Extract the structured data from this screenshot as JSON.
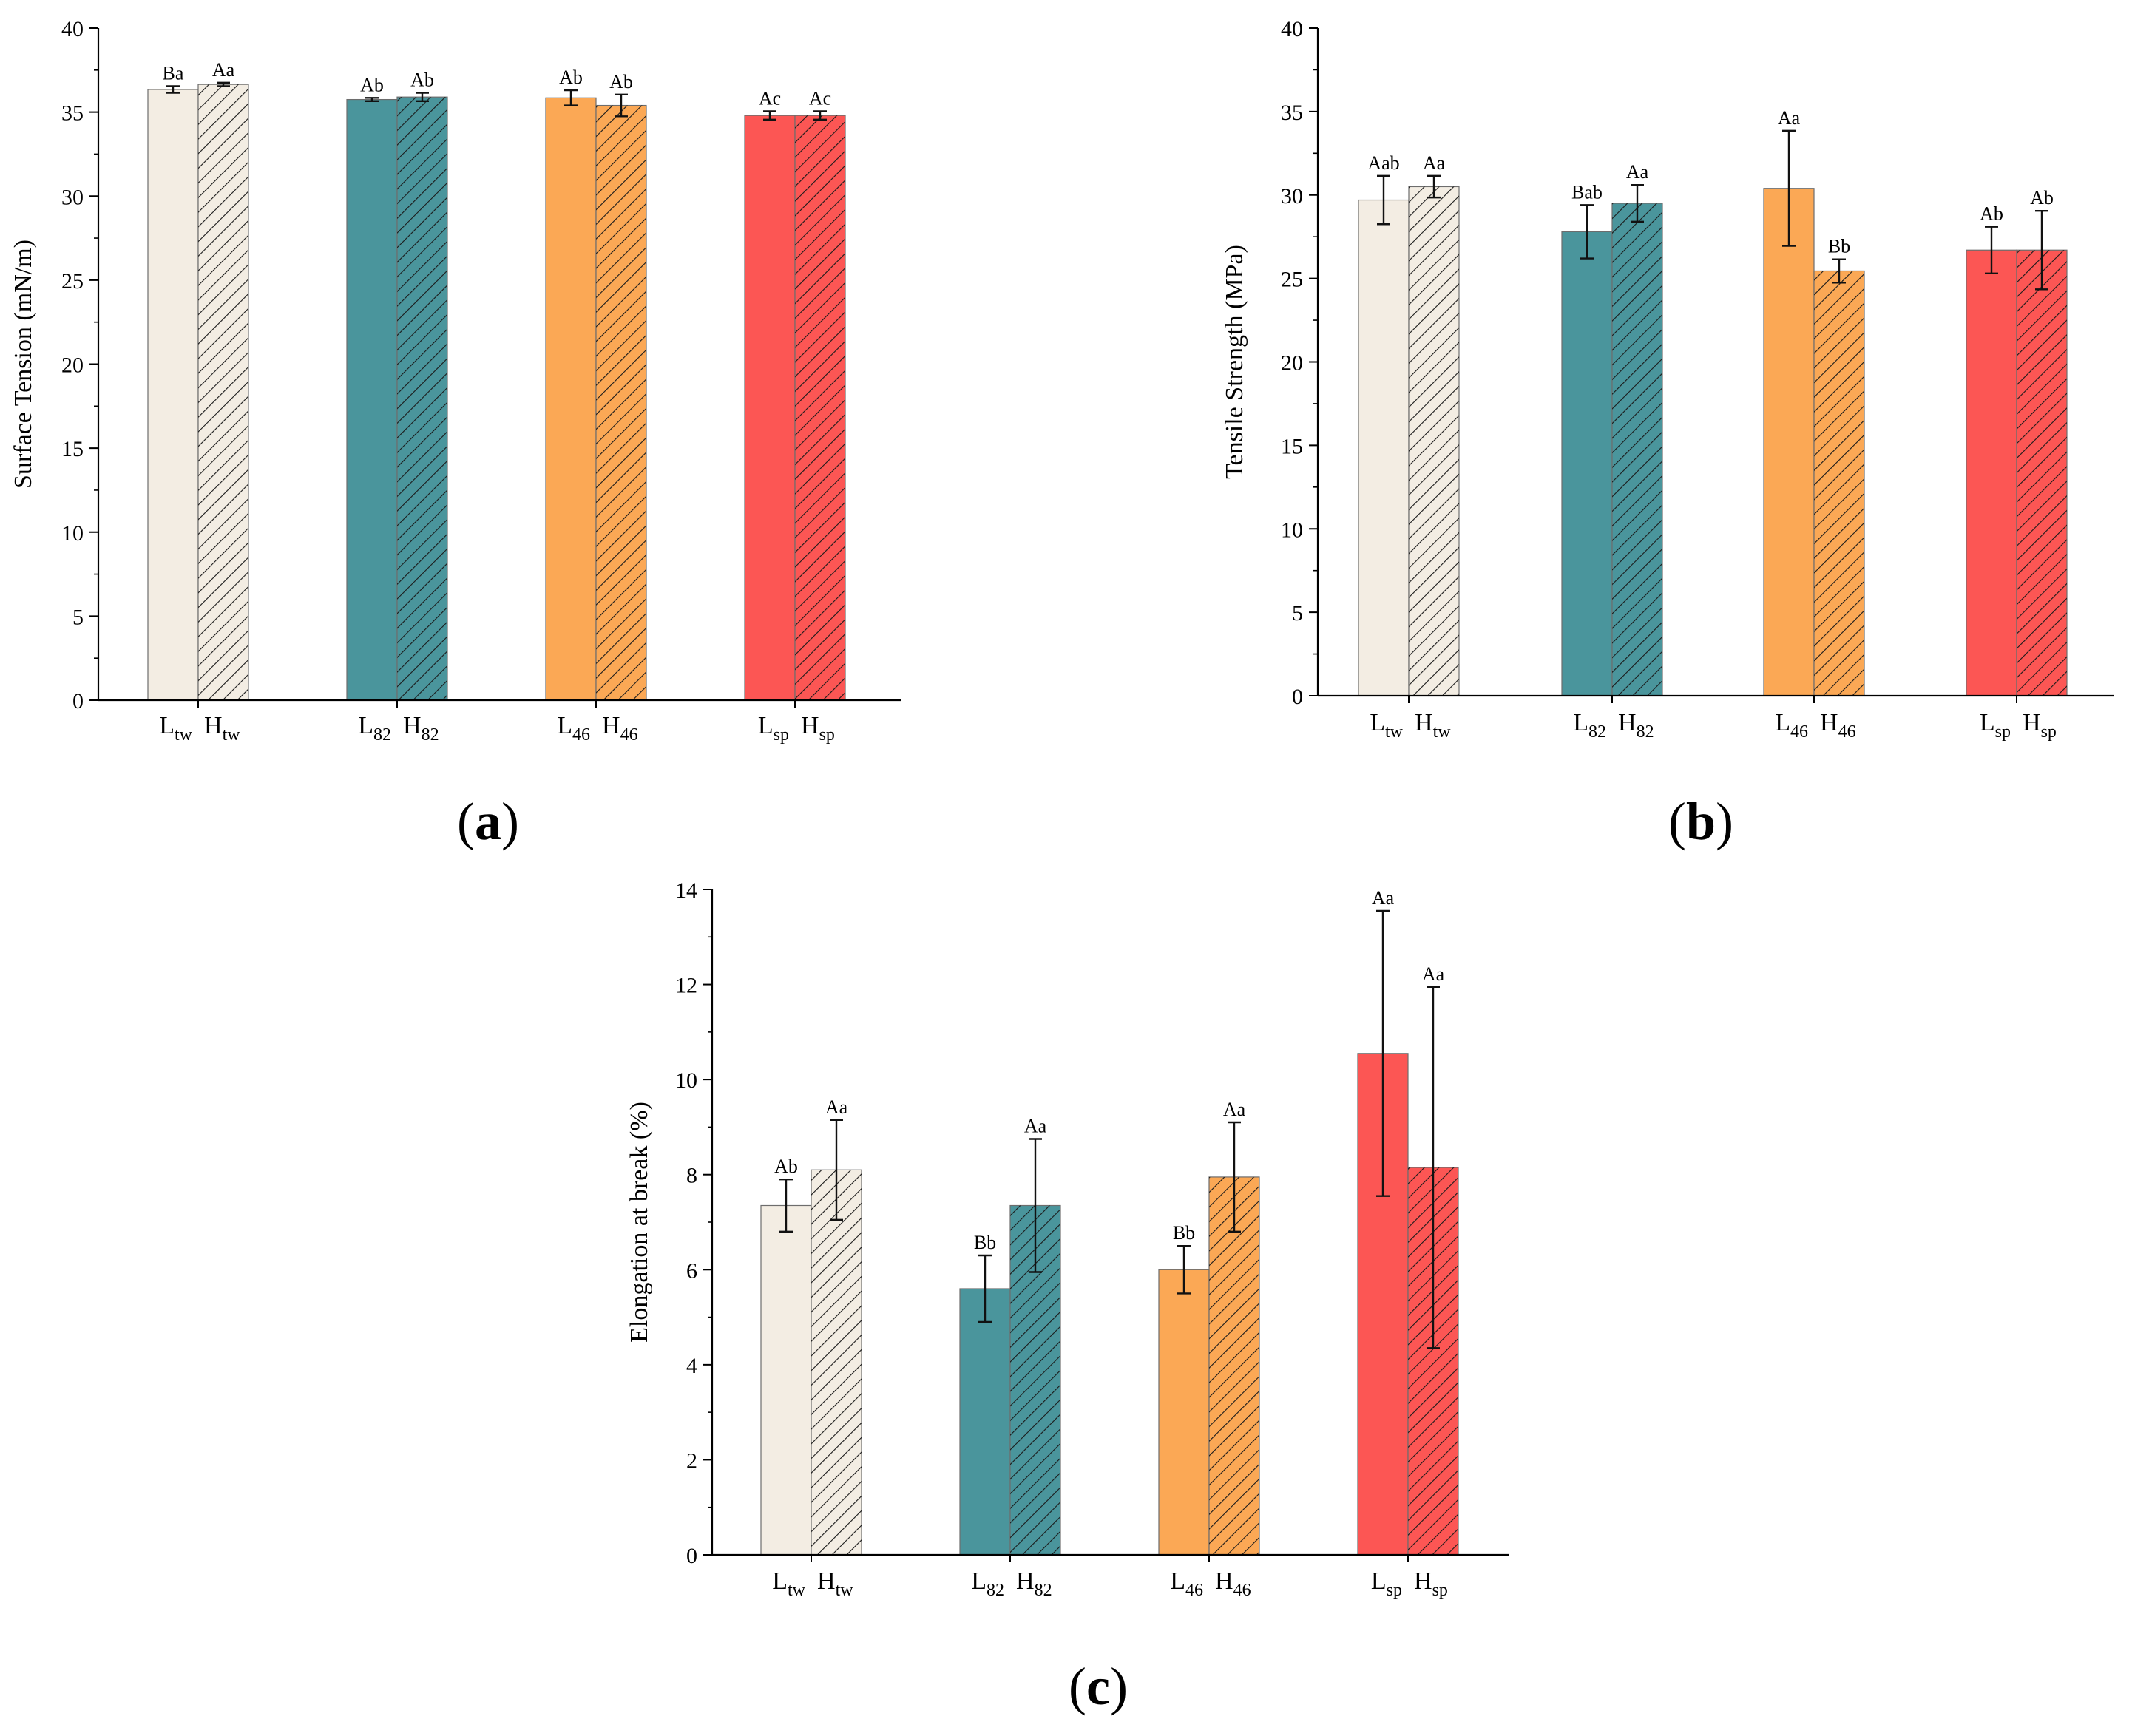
{
  "figure": {
    "panel_labels": [
      {
        "open": "(",
        "letter": "a",
        "close": ")"
      },
      {
        "open": "(",
        "letter": "b",
        "close": ")"
      },
      {
        "open": "(",
        "letter": "c",
        "close": ")"
      }
    ]
  },
  "colors": {
    "tw": "#f3ede3",
    "c82": "#4a959c",
    "c46": "#fba855",
    "sp": "#fc5654",
    "axis": "#000000"
  },
  "chart_data": [
    {
      "id": "a",
      "type": "bar",
      "title": "",
      "xlabel": "",
      "ylabel": "Surface Tension (mN/m)",
      "ylim": [
        0,
        40
      ],
      "yticks": [
        0,
        5,
        10,
        15,
        20,
        25,
        30,
        35,
        40
      ],
      "grid": false,
      "groups": [
        {
          "key": "tw",
          "color_key": "tw",
          "labels": [
            {
              "main": "L",
              "sub": "tw"
            },
            {
              "main": "H",
              "sub": "tw"
            }
          ],
          "bars": [
            {
              "series": "L",
              "hatched": false,
              "value": 36.35,
              "error": 0.2,
              "letters": "Ba"
            },
            {
              "series": "H",
              "hatched": true,
              "value": 36.65,
              "error": 0.1,
              "letters": "Aa"
            }
          ]
        },
        {
          "key": "82",
          "color_key": "c82",
          "labels": [
            {
              "main": "L",
              "sub": "82"
            },
            {
              "main": "H",
              "sub": "82"
            }
          ],
          "bars": [
            {
              "series": "L",
              "hatched": false,
              "value": 35.75,
              "error": 0.1,
              "letters": "Ab"
            },
            {
              "series": "H",
              "hatched": true,
              "value": 35.9,
              "error": 0.25,
              "letters": "Ab"
            }
          ]
        },
        {
          "key": "46",
          "color_key": "c46",
          "labels": [
            {
              "main": "L",
              "sub": "46"
            },
            {
              "main": "H",
              "sub": "46"
            }
          ],
          "bars": [
            {
              "series": "L",
              "hatched": false,
              "value": 35.85,
              "error": 0.45,
              "letters": "Ab"
            },
            {
              "series": "H",
              "hatched": true,
              "value": 35.4,
              "error": 0.65,
              "letters": "Ab"
            }
          ]
        },
        {
          "key": "sp",
          "color_key": "sp",
          "labels": [
            {
              "main": "L",
              "sub": "sp"
            },
            {
              "main": "H",
              "sub": "sp"
            }
          ],
          "bars": [
            {
              "series": "L",
              "hatched": false,
              "value": 34.8,
              "error": 0.25,
              "letters": "Ac"
            },
            {
              "series": "H",
              "hatched": true,
              "value": 34.8,
              "error": 0.25,
              "letters": "Ac"
            }
          ]
        }
      ]
    },
    {
      "id": "b",
      "type": "bar",
      "title": "",
      "xlabel": "",
      "ylabel": "Tensile Strength (MPa)",
      "ylim": [
        0,
        40
      ],
      "yticks": [
        0,
        5,
        10,
        15,
        20,
        25,
        30,
        35,
        40
      ],
      "grid": false,
      "groups": [
        {
          "key": "tw",
          "color_key": "tw",
          "labels": [
            {
              "main": "L",
              "sub": "tw"
            },
            {
              "main": "H",
              "sub": "tw"
            }
          ],
          "bars": [
            {
              "series": "L",
              "hatched": false,
              "value": 29.7,
              "error": 1.45,
              "letters": "Aab"
            },
            {
              "series": "H",
              "hatched": true,
              "value": 30.5,
              "error": 0.65,
              "letters": "Aa"
            }
          ]
        },
        {
          "key": "82",
          "color_key": "c82",
          "labels": [
            {
              "main": "L",
              "sub": "82"
            },
            {
              "main": "H",
              "sub": "82"
            }
          ],
          "bars": [
            {
              "series": "L",
              "hatched": false,
              "value": 27.8,
              "error": 1.6,
              "letters": "Bab"
            },
            {
              "series": "H",
              "hatched": true,
              "value": 29.5,
              "error": 1.1,
              "letters": "Aa"
            }
          ]
        },
        {
          "key": "46",
          "color_key": "c46",
          "labels": [
            {
              "main": "L",
              "sub": "46"
            },
            {
              "main": "H",
              "sub": "46"
            }
          ],
          "bars": [
            {
              "series": "L",
              "hatched": false,
              "value": 30.4,
              "error": 3.45,
              "letters": "Aa"
            },
            {
              "series": "H",
              "hatched": true,
              "value": 25.45,
              "error": 0.7,
              "letters": "Bb"
            }
          ]
        },
        {
          "key": "sp",
          "color_key": "sp",
          "labels": [
            {
              "main": "L",
              "sub": "sp"
            },
            {
              "main": "H",
              "sub": "sp"
            }
          ],
          "bars": [
            {
              "series": "L",
              "hatched": false,
              "value": 26.7,
              "error": 1.4,
              "letters": "Ab"
            },
            {
              "series": "H",
              "hatched": true,
              "value": 26.7,
              "error": 2.35,
              "letters": "Ab"
            }
          ]
        }
      ]
    },
    {
      "id": "c",
      "type": "bar",
      "title": "",
      "xlabel": "",
      "ylabel": "Elongation at break (%)",
      "ylim": [
        0,
        14
      ],
      "yticks": [
        0,
        2,
        4,
        6,
        8,
        10,
        12,
        14
      ],
      "grid": false,
      "groups": [
        {
          "key": "tw",
          "color_key": "tw",
          "labels": [
            {
              "main": "L",
              "sub": "tw"
            },
            {
              "main": "H",
              "sub": "tw"
            }
          ],
          "bars": [
            {
              "series": "L",
              "hatched": false,
              "value": 7.35,
              "error": 0.55,
              "letters": "Ab"
            },
            {
              "series": "H",
              "hatched": true,
              "value": 8.1,
              "error": 1.05,
              "letters": "Aa"
            }
          ]
        },
        {
          "key": "82",
          "color_key": "c82",
          "labels": [
            {
              "main": "L",
              "sub": "82"
            },
            {
              "main": "H",
              "sub": "82"
            }
          ],
          "bars": [
            {
              "series": "L",
              "hatched": false,
              "value": 5.6,
              "error": 0.7,
              "letters": "Bb"
            },
            {
              "series": "H",
              "hatched": true,
              "value": 7.35,
              "error": 1.4,
              "letters": "Aa"
            }
          ]
        },
        {
          "key": "46",
          "color_key": "c46",
          "labels": [
            {
              "main": "L",
              "sub": "46"
            },
            {
              "main": "H",
              "sub": "46"
            }
          ],
          "bars": [
            {
              "series": "L",
              "hatched": false,
              "value": 6.0,
              "error": 0.5,
              "letters": "Bb"
            },
            {
              "series": "H",
              "hatched": true,
              "value": 7.95,
              "error": 1.15,
              "letters": "Aa"
            }
          ]
        },
        {
          "key": "sp",
          "color_key": "sp",
          "labels": [
            {
              "main": "L",
              "sub": "sp"
            },
            {
              "main": "H",
              "sub": "sp"
            }
          ],
          "bars": [
            {
              "series": "L",
              "hatched": false,
              "value": 10.55,
              "error": 3.0,
              "letters": "Aa"
            },
            {
              "series": "H",
              "hatched": true,
              "value": 8.15,
              "error": 3.8,
              "letters": "Aa"
            }
          ]
        }
      ]
    }
  ]
}
